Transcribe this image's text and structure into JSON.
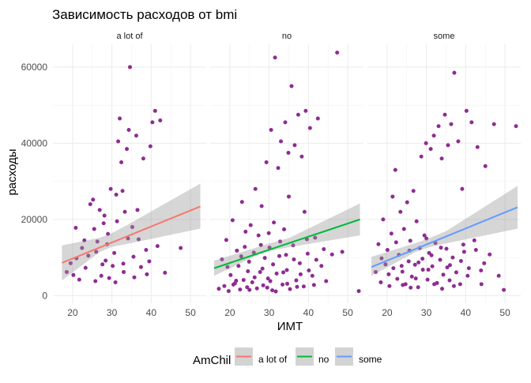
{
  "chart_data": {
    "type": "scatter",
    "title": "Зависимость расходов от bmi",
    "xlabel": "ИМТ",
    "ylabel": "расходы",
    "xlim": [
      15,
      54
    ],
    "ylim": [
      -2000,
      66000
    ],
    "x_ticks": [
      20,
      30,
      40,
      50
    ],
    "y_ticks": [
      0,
      20000,
      40000,
      60000
    ],
    "x_tick_labels": [
      "20",
      "30",
      "40",
      "50"
    ],
    "y_tick_labels": [
      "0",
      "20000",
      "40000",
      "60000"
    ],
    "grid": true,
    "point_color": "#8e2c92",
    "legend": {
      "title": "AmChil",
      "placement": "bottom",
      "items": [
        {
          "label": "a lot of",
          "color": "#f8766d"
        },
        {
          "label": "no",
          "color": "#00ba38"
        },
        {
          "label": "some",
          "color": "#619cff"
        }
      ]
    },
    "panels": [
      {
        "label": "a lot of",
        "trend_color": "#f8766d",
        "trend": {
          "x": [
            17.3,
            52.5
          ],
          "y": [
            8600,
            23400
          ]
        },
        "band": {
          "x": [
            17.3,
            27,
            30,
            34,
            52.5
          ],
          "lower": [
            4000,
            11500,
            12800,
            13600,
            17600
          ],
          "upper": [
            13200,
            15200,
            16400,
            18600,
            29400
          ]
        },
        "points": [
          [
            18.5,
            6200
          ],
          [
            19.5,
            8500
          ],
          [
            20.2,
            5400
          ],
          [
            21.0,
            9800
          ],
          [
            21.7,
            4200
          ],
          [
            22.4,
            12500
          ],
          [
            23.3,
            7300
          ],
          [
            24.0,
            10500
          ],
          [
            24.5,
            24000
          ],
          [
            25.2,
            25200
          ],
          [
            25.8,
            3800
          ],
          [
            26.3,
            14200
          ],
          [
            26.9,
            22500
          ],
          [
            27.3,
            5200
          ],
          [
            27.9,
            19000
          ],
          [
            28.4,
            9200
          ],
          [
            28.8,
            13500
          ],
          [
            29.3,
            4600
          ],
          [
            29.7,
            28000
          ],
          [
            30.2,
            7800
          ],
          [
            30.6,
            11200
          ],
          [
            31.1,
            26500
          ],
          [
            31.6,
            40500
          ],
          [
            32.0,
            46500
          ],
          [
            32.4,
            35000
          ],
          [
            32.9,
            8400
          ],
          [
            33.3,
            22000
          ],
          [
            33.8,
            38500
          ],
          [
            34.3,
            43500
          ],
          [
            34.6,
            60000
          ],
          [
            35.2,
            18000
          ],
          [
            35.7,
            4800
          ],
          [
            36.2,
            42000
          ],
          [
            36.8,
            14800
          ],
          [
            37.4,
            7500
          ],
          [
            38.0,
            36000
          ],
          [
            38.7,
            12000
          ],
          [
            39.5,
            9000
          ],
          [
            40.3,
            45500
          ],
          [
            41.0,
            48500
          ],
          [
            41.6,
            13000
          ],
          [
            42.3,
            46000
          ],
          [
            43.5,
            6000
          ],
          [
            47.5,
            12500
          ],
          [
            23.0,
            14500
          ],
          [
            25.5,
            17500
          ],
          [
            27.6,
            8200
          ],
          [
            29.0,
            16200
          ],
          [
            30.9,
            3500
          ],
          [
            32.7,
            27500
          ],
          [
            34.1,
            15000
          ],
          [
            36.5,
            22500
          ],
          [
            38.9,
            5600
          ],
          [
            20.8,
            17800
          ],
          [
            26.0,
            11500
          ],
          [
            28.1,
            21000
          ],
          [
            31.3,
            19500
          ],
          [
            33.0,
            6200
          ],
          [
            35.5,
            10200
          ],
          [
            39.8,
            39200
          ]
        ]
      },
      {
        "label": "no",
        "trend_color": "#00ba38",
        "trend": {
          "x": [
            16.0,
            53.1
          ],
          "y": [
            7200,
            20000
          ]
        },
        "band": {
          "x": [
            16.0,
            27,
            30,
            35,
            53.1
          ],
          "lower": [
            5200,
            10600,
            11700,
            12700,
            15800
          ],
          "upper": [
            9200,
            12700,
            13700,
            15100,
            24200
          ]
        },
        "points": [
          [
            17.2,
            1800
          ],
          [
            18.0,
            9500
          ],
          [
            18.6,
            2500
          ],
          [
            19.1,
            14600
          ],
          [
            19.7,
            1200
          ],
          [
            20.2,
            5400
          ],
          [
            20.7,
            19800
          ],
          [
            21.3,
            3200
          ],
          [
            21.8,
            11800
          ],
          [
            22.2,
            7800
          ],
          [
            22.6,
            1600
          ],
          [
            23.1,
            24600
          ],
          [
            23.5,
            4100
          ],
          [
            24.0,
            16800
          ],
          [
            24.4,
            2200
          ],
          [
            24.9,
            8900
          ],
          [
            25.3,
            18500
          ],
          [
            25.7,
            3500
          ],
          [
            26.1,
            11300
          ],
          [
            26.5,
            28000
          ],
          [
            26.9,
            1900
          ],
          [
            27.3,
            15800
          ],
          [
            27.7,
            6200
          ],
          [
            28.1,
            23500
          ],
          [
            28.5,
            2700
          ],
          [
            28.9,
            9900
          ],
          [
            29.3,
            35000
          ],
          [
            29.7,
            4500
          ],
          [
            30.1,
            12600
          ],
          [
            30.5,
            43500
          ],
          [
            30.8,
            1400
          ],
          [
            31.2,
            19200
          ],
          [
            31.5,
            62500
          ],
          [
            31.9,
            5800
          ],
          [
            32.3,
            33500
          ],
          [
            32.6,
            10400
          ],
          [
            33.0,
            40500
          ],
          [
            33.4,
            2900
          ],
          [
            33.8,
            17400
          ],
          [
            34.1,
            45500
          ],
          [
            34.5,
            6700
          ],
          [
            34.9,
            37500
          ],
          [
            35.3,
            1700
          ],
          [
            35.7,
            55000
          ],
          [
            36.1,
            13200
          ],
          [
            36.5,
            39500
          ],
          [
            36.9,
            4000
          ],
          [
            37.4,
            47500
          ],
          [
            37.8,
            8500
          ],
          [
            38.3,
            36500
          ],
          [
            38.8,
            2400
          ],
          [
            39.3,
            48500
          ],
          [
            39.8,
            11000
          ],
          [
            40.4,
            44000
          ],
          [
            41.0,
            5200
          ],
          [
            41.7,
            15200
          ],
          [
            42.4,
            46500
          ],
          [
            43.3,
            7800
          ],
          [
            44.5,
            3800
          ],
          [
            46.0,
            10800
          ],
          [
            47.3,
            63800
          ],
          [
            48.6,
            11500
          ],
          [
            52.8,
            1200
          ],
          [
            19.4,
            7500
          ],
          [
            20.9,
            2900
          ],
          [
            22.9,
            10300
          ],
          [
            24.6,
            6400
          ],
          [
            26.3,
            4800
          ],
          [
            27.9,
            13300
          ],
          [
            29.5,
            2100
          ],
          [
            31.0,
            8200
          ],
          [
            32.8,
            14200
          ],
          [
            34.6,
            3100
          ],
          [
            36.3,
            9500
          ],
          [
            38.0,
            5600
          ],
          [
            39.6,
            14800
          ],
          [
            41.4,
            2800
          ],
          [
            43.9,
            12200
          ],
          [
            21.6,
            3900
          ],
          [
            25.0,
            1500
          ],
          [
            28.3,
            7100
          ],
          [
            30.3,
            3800
          ],
          [
            33.6,
            6100
          ],
          [
            35.0,
            26000
          ],
          [
            37.1,
            2300
          ],
          [
            40.1,
            6600
          ],
          [
            42.0,
            9400
          ],
          [
            23.8,
            12800
          ],
          [
            29.9,
            16400
          ],
          [
            31.7,
            1100
          ],
          [
            34.3,
            10700
          ],
          [
            39.0,
            22000
          ]
        ]
      },
      {
        "label": "some",
        "trend_color": "#619cff",
        "trend": {
          "x": [
            16.0,
            53.2
          ],
          "y": [
            7500,
            23200
          ]
        },
        "band": {
          "x": [
            16.0,
            27,
            30,
            35,
            53.2
          ],
          "lower": [
            5200,
            11300,
            12500,
            13700,
            17600
          ],
          "upper": [
            10200,
            13700,
            14800,
            16900,
            28800
          ]
        },
        "points": [
          [
            17.1,
            6200
          ],
          [
            17.8,
            13500
          ],
          [
            18.4,
            3500
          ],
          [
            19.0,
            20000
          ],
          [
            19.6,
            8200
          ],
          [
            20.1,
            12000
          ],
          [
            20.6,
            2500
          ],
          [
            21.1,
            16300
          ],
          [
            21.6,
            7200
          ],
          [
            22.1,
            33000
          ],
          [
            22.6,
            4400
          ],
          [
            23.0,
            10700
          ],
          [
            23.4,
            22000
          ],
          [
            23.9,
            6300
          ],
          [
            24.3,
            17500
          ],
          [
            24.7,
            3000
          ],
          [
            25.1,
            24500
          ],
          [
            25.5,
            9000
          ],
          [
            25.9,
            14400
          ],
          [
            26.3,
            5000
          ],
          [
            26.7,
            27500
          ],
          [
            27.1,
            8100
          ],
          [
            27.5,
            19500
          ],
          [
            27.9,
            2200
          ],
          [
            28.3,
            12500
          ],
          [
            28.7,
            36500
          ],
          [
            29.1,
            6800
          ],
          [
            29.5,
            15800
          ],
          [
            29.9,
            40000
          ],
          [
            30.3,
            4200
          ],
          [
            30.7,
            11200
          ],
          [
            31.1,
            38500
          ],
          [
            31.5,
            7700
          ],
          [
            31.9,
            42000
          ],
          [
            32.3,
            13800
          ],
          [
            32.7,
            3300
          ],
          [
            33.1,
            44500
          ],
          [
            33.5,
            9400
          ],
          [
            33.9,
            36000
          ],
          [
            34.3,
            5500
          ],
          [
            34.7,
            47500
          ],
          [
            35.1,
            12300
          ],
          [
            35.5,
            39500
          ],
          [
            35.9,
            4000
          ],
          [
            36.3,
            45000
          ],
          [
            36.7,
            10000
          ],
          [
            37.1,
            58500
          ],
          [
            37.6,
            6100
          ],
          [
            38.1,
            40500
          ],
          [
            38.6,
            3000
          ],
          [
            39.1,
            28000
          ],
          [
            39.6,
            11500
          ],
          [
            40.2,
            48500
          ],
          [
            40.8,
            7200
          ],
          [
            41.5,
            45500
          ],
          [
            42.2,
            14500
          ],
          [
            43.0,
            39000
          ],
          [
            43.9,
            6600
          ],
          [
            45.0,
            34000
          ],
          [
            46.1,
            10800
          ],
          [
            47.2,
            45000
          ],
          [
            48.4,
            5200
          ],
          [
            49.7,
            1500
          ],
          [
            52.8,
            44500
          ],
          [
            18.6,
            9800
          ],
          [
            20.4,
            5600
          ],
          [
            22.3,
            14000
          ],
          [
            24.0,
            2800
          ],
          [
            25.7,
            11800
          ],
          [
            27.3,
            4500
          ],
          [
            29.0,
            9700
          ],
          [
            30.5,
            6800
          ],
          [
            32.0,
            3000
          ],
          [
            33.7,
            12600
          ],
          [
            35.3,
            7400
          ],
          [
            37.0,
            2500
          ],
          [
            38.8,
            9100
          ],
          [
            40.5,
            5200
          ],
          [
            42.6,
            12000
          ],
          [
            44.7,
            8500
          ],
          [
            21.4,
            26000
          ],
          [
            26.0,
            2100
          ],
          [
            28.0,
            8700
          ],
          [
            31.3,
            10600
          ],
          [
            34.0,
            1800
          ],
          [
            36.0,
            8000
          ],
          [
            39.4,
            13400
          ],
          [
            44.0,
            3000
          ],
          [
            23.7,
            7800
          ],
          [
            30.0,
            15000
          ]
        ]
      }
    ]
  }
}
